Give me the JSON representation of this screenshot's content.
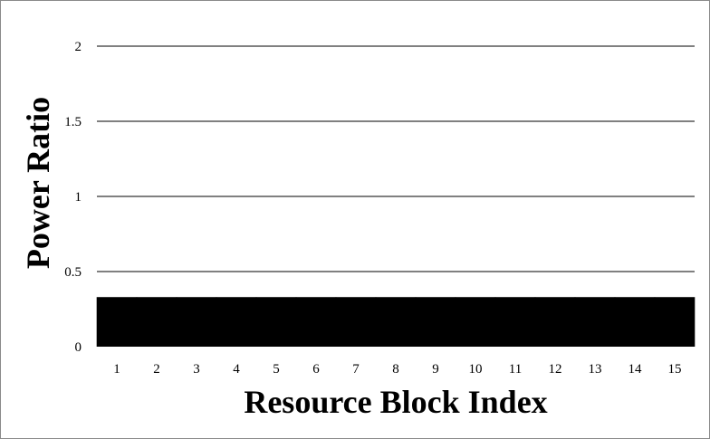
{
  "chart_data": {
    "type": "bar",
    "title": "",
    "xlabel": "Resource Block Index",
    "ylabel": "Power Ratio",
    "categories": [
      "1",
      "2",
      "3",
      "4",
      "5",
      "6",
      "7",
      "8",
      "9",
      "10",
      "11",
      "12",
      "13",
      "14",
      "15"
    ],
    "values": [
      0.33,
      0.33,
      0.33,
      0.33,
      0.33,
      0.33,
      0.33,
      0.33,
      0.33,
      0.33,
      0.33,
      0.33,
      0.33,
      0.33,
      0.33
    ],
    "ylim": [
      0,
      2
    ],
    "yticks": [
      "0",
      "0.5",
      "1",
      "1.5",
      "2"
    ],
    "grid": true,
    "legend": "none",
    "bar_color": "#000000"
  }
}
